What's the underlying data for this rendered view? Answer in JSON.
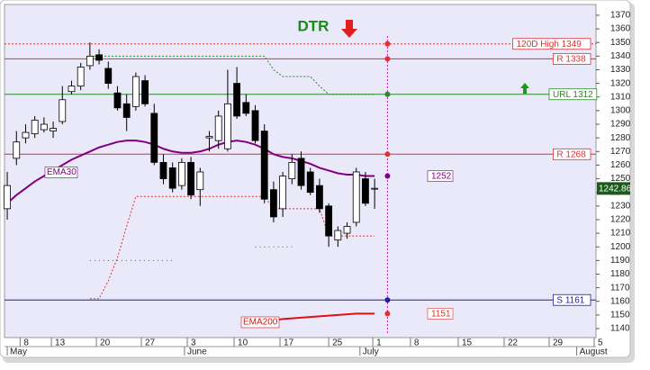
{
  "chart_data": {
    "type": "candlestick",
    "title": "DTR",
    "xlim": [
      -0.3,
      64.1
    ],
    "xticks": [
      {
        "value": 1.4,
        "label": "8"
      },
      {
        "value": 4.8,
        "label": "13"
      },
      {
        "value": 9.7,
        "label": "20"
      },
      {
        "value": 14.6,
        "label": "27"
      },
      {
        "value": 19.6,
        "label": "3"
      },
      {
        "value": 24.7,
        "label": "10"
      },
      {
        "value": 29.7,
        "label": "17"
      },
      {
        "value": 35,
        "label": "25"
      },
      {
        "value": 39.8,
        "label": "1"
      },
      {
        "value": 43.9,
        "label": "8"
      },
      {
        "value": 49.1,
        "label": "15"
      },
      {
        "value": 54.1,
        "label": "22"
      },
      {
        "value": 59,
        "label": "29"
      },
      {
        "value": 63.9,
        "label": "5"
      }
    ],
    "month_ticks": [
      {
        "value": 0,
        "label": "May"
      },
      {
        "value": 19.3,
        "label": "June"
      },
      {
        "value": 38.4,
        "label": "July"
      },
      {
        "value": 62,
        "label": "August"
      }
    ],
    "ylim": [
      1133.4,
      1377.9
    ],
    "yticks": [
      1140,
      1150,
      1160,
      1170,
      1180,
      1190,
      1200,
      1210,
      1220,
      1230,
      1240,
      1250,
      1260,
      1270,
      1280,
      1290,
      1300,
      1310,
      1320,
      1330,
      1340,
      1350,
      1360,
      1370
    ],
    "candles": {
      "open": [
        1228,
        1265,
        1280,
        1283,
        1286,
        1285,
        1292,
        1314,
        1318,
        1333,
        1341,
        1331,
        1313,
        1305,
        1303,
        1322,
        1298,
        1262,
        1258,
        1245,
        1262,
        1242,
        1280,
        1278,
        1272,
        1320,
        1306,
        1300,
        1285,
        1242,
        1228,
        1250,
        1265,
        1255,
        1245,
        1230,
        1205,
        1210,
        1218,
        1250,
        1243
      ],
      "high": [
        1255,
        1285,
        1290,
        1296,
        1295,
        1292,
        1318,
        1322,
        1335,
        1350,
        1345,
        1336,
        1318,
        1312,
        1328,
        1326,
        1305,
        1268,
        1262,
        1265,
        1266,
        1258,
        1285,
        1300,
        1330,
        1332,
        1312,
        1304,
        1290,
        1248,
        1255,
        1268,
        1270,
        1258,
        1250,
        1232,
        1215,
        1218,
        1258,
        1255,
        1250
      ],
      "low": [
        1220,
        1260,
        1276,
        1280,
        1284,
        1280,
        1290,
        1312,
        1315,
        1330,
        1334,
        1316,
        1300,
        1285,
        1300,
        1303,
        1260,
        1246,
        1240,
        1242,
        1235,
        1230,
        1270,
        1272,
        1270,
        1294,
        1296,
        1276,
        1232,
        1218,
        1222,
        1246,
        1242,
        1238,
        1225,
        1200,
        1200,
        1206,
        1215,
        1230,
        1228
      ],
      "close": [
        1245,
        1277,
        1284,
        1293,
        1290,
        1287,
        1308,
        1318,
        1332,
        1340,
        1337,
        1320,
        1302,
        1295,
        1325,
        1305,
        1262,
        1250,
        1243,
        1262,
        1238,
        1255,
        1281,
        1296,
        1305,
        1296,
        1298,
        1278,
        1235,
        1222,
        1252,
        1262,
        1245,
        1240,
        1228,
        1208,
        1212,
        1215,
        1255,
        1232,
        1243
      ]
    },
    "last_price": 1242.86,
    "series": [
      {
        "name": "EMA30",
        "color": "#800080",
        "width": 2,
        "dash": "none",
        "values": [
          1232,
          1238,
          1243,
          1248,
          1252,
          1256,
          1260,
          1264,
          1267,
          1270,
          1273,
          1275,
          1277,
          1278,
          1278,
          1277,
          1275,
          1272,
          1270,
          1269,
          1269,
          1270,
          1272,
          1275,
          1277,
          1278,
          1277,
          1275,
          1272,
          1268,
          1266,
          1265,
          1263,
          1261,
          1258,
          1256,
          1254,
          1253,
          1253,
          1252,
          1252
        ]
      },
      {
        "name": "EMA200",
        "color": "#dd1111",
        "width": 2,
        "dash": "none",
        "values": [
          null,
          null,
          null,
          null,
          null,
          null,
          null,
          null,
          null,
          null,
          null,
          null,
          null,
          null,
          null,
          null,
          null,
          null,
          null,
          null,
          null,
          null,
          null,
          null,
          null,
          null,
          1142,
          1144,
          1145,
          1146,
          1147,
          1147.5,
          1148,
          1148.5,
          1149,
          1149.5,
          1150,
          1150.5,
          1151,
          1151,
          1151
        ]
      },
      {
        "color": "#2a8a2a",
        "width": 1,
        "dash": "2,2",
        "values": [
          null,
          null,
          null,
          null,
          null,
          null,
          null,
          null,
          null,
          1340,
          1340,
          1340,
          1340,
          1340,
          1340,
          1340,
          1340,
          1340,
          1340,
          1340,
          1340,
          1340,
          1340,
          1340,
          1340,
          1340,
          1340,
          1340,
          1340,
          1330,
          1325,
          1325,
          1325,
          1325,
          1318,
          1312,
          1312,
          1312,
          1312,
          1312,
          1312
        ]
      },
      {
        "color": "#e03030",
        "width": 1,
        "dash": "2,2",
        "values": [
          null,
          null,
          null,
          null,
          null,
          null,
          null,
          null,
          null,
          1162,
          1162,
          1175,
          1192,
          1215,
          1237,
          1237,
          1237,
          1237,
          1237,
          1237,
          1237,
          1237,
          1237,
          1237,
          1237,
          1237,
          1237,
          1237,
          1237,
          1228,
          1228,
          1228,
          1228,
          1228,
          1228,
          1208,
          1208,
          1208,
          1208,
          1208,
          1208
        ]
      },
      {
        "color": "#555555",
        "width": 1,
        "dash": "1,4",
        "values": [
          null,
          null,
          null,
          null,
          null,
          null,
          null,
          null,
          null,
          1190,
          1190,
          1190,
          1190,
          1190,
          1190,
          1190,
          1190,
          1190,
          1190,
          null,
          null,
          null,
          null,
          null,
          null,
          null,
          null,
          1200,
          1200,
          1200,
          1200,
          1200,
          null,
          null,
          null,
          null,
          null,
          null,
          null,
          null,
          null
        ]
      }
    ],
    "levels": [
      {
        "label": "120D High 1349",
        "value": 1349,
        "color": "#e03030",
        "dash": "2,2"
      },
      {
        "label": "R 1338",
        "value": 1338,
        "color": "#e03030",
        "dash": "none"
      },
      {
        "label": "URL 1312",
        "value": 1312,
        "color": "#2a8a2a",
        "dash": "none"
      },
      {
        "label": "R 1268",
        "value": 1268,
        "color": "#e03030",
        "dash": "none"
      },
      {
        "label": "S 1161",
        "value": 1161,
        "color": "#2020a0",
        "dash": "none"
      }
    ],
    "projection_x": 41.4,
    "annotations": [
      {
        "label": "1252",
        "value": 1252,
        "color": "#800080"
      },
      {
        "label": "1151",
        "value": 1151,
        "color": "#e03030"
      }
    ]
  }
}
